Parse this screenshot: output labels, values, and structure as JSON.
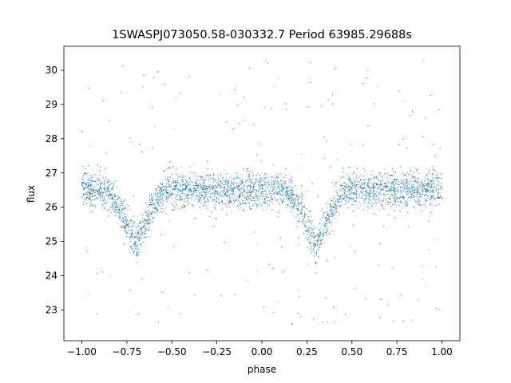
{
  "chart_data": {
    "type": "scatter",
    "title": "1SWASPJ073050.58-030332.7 Period 63985.29688s",
    "xlabel": "phase",
    "ylabel": "flux",
    "xlim": [
      -1.1,
      1.1
    ],
    "ylim": [
      22.1,
      30.7
    ],
    "xticks": [
      -1.0,
      -0.75,
      -0.5,
      -0.25,
      0.0,
      0.25,
      0.5,
      0.75,
      1.0
    ],
    "xtick_labels": [
      "−1.00",
      "−0.75",
      "−0.50",
      "−0.25",
      "0.00",
      "0.25",
      "0.50",
      "0.75",
      "1.00"
    ],
    "yticks": [
      23,
      24,
      25,
      26,
      27,
      28,
      29,
      30
    ],
    "ytick_labels": [
      "23",
      "24",
      "25",
      "26",
      "27",
      "28",
      "29",
      "30"
    ],
    "grid": false,
    "marker_color": "#1f77b4",
    "phase_range": [
      -1.0,
      1.0
    ],
    "baseline_flux": 26.5,
    "primary_eclipse": {
      "phase": -0.7,
      "min_flux": 24.9,
      "half_width": 0.17
    },
    "secondary_eclipse": {
      "phase": 0.3,
      "min_flux": 24.9,
      "half_width": 0.17
    },
    "scatter_std": 0.25,
    "outlier_flux_range": [
      22.5,
      30.3
    ]
  }
}
